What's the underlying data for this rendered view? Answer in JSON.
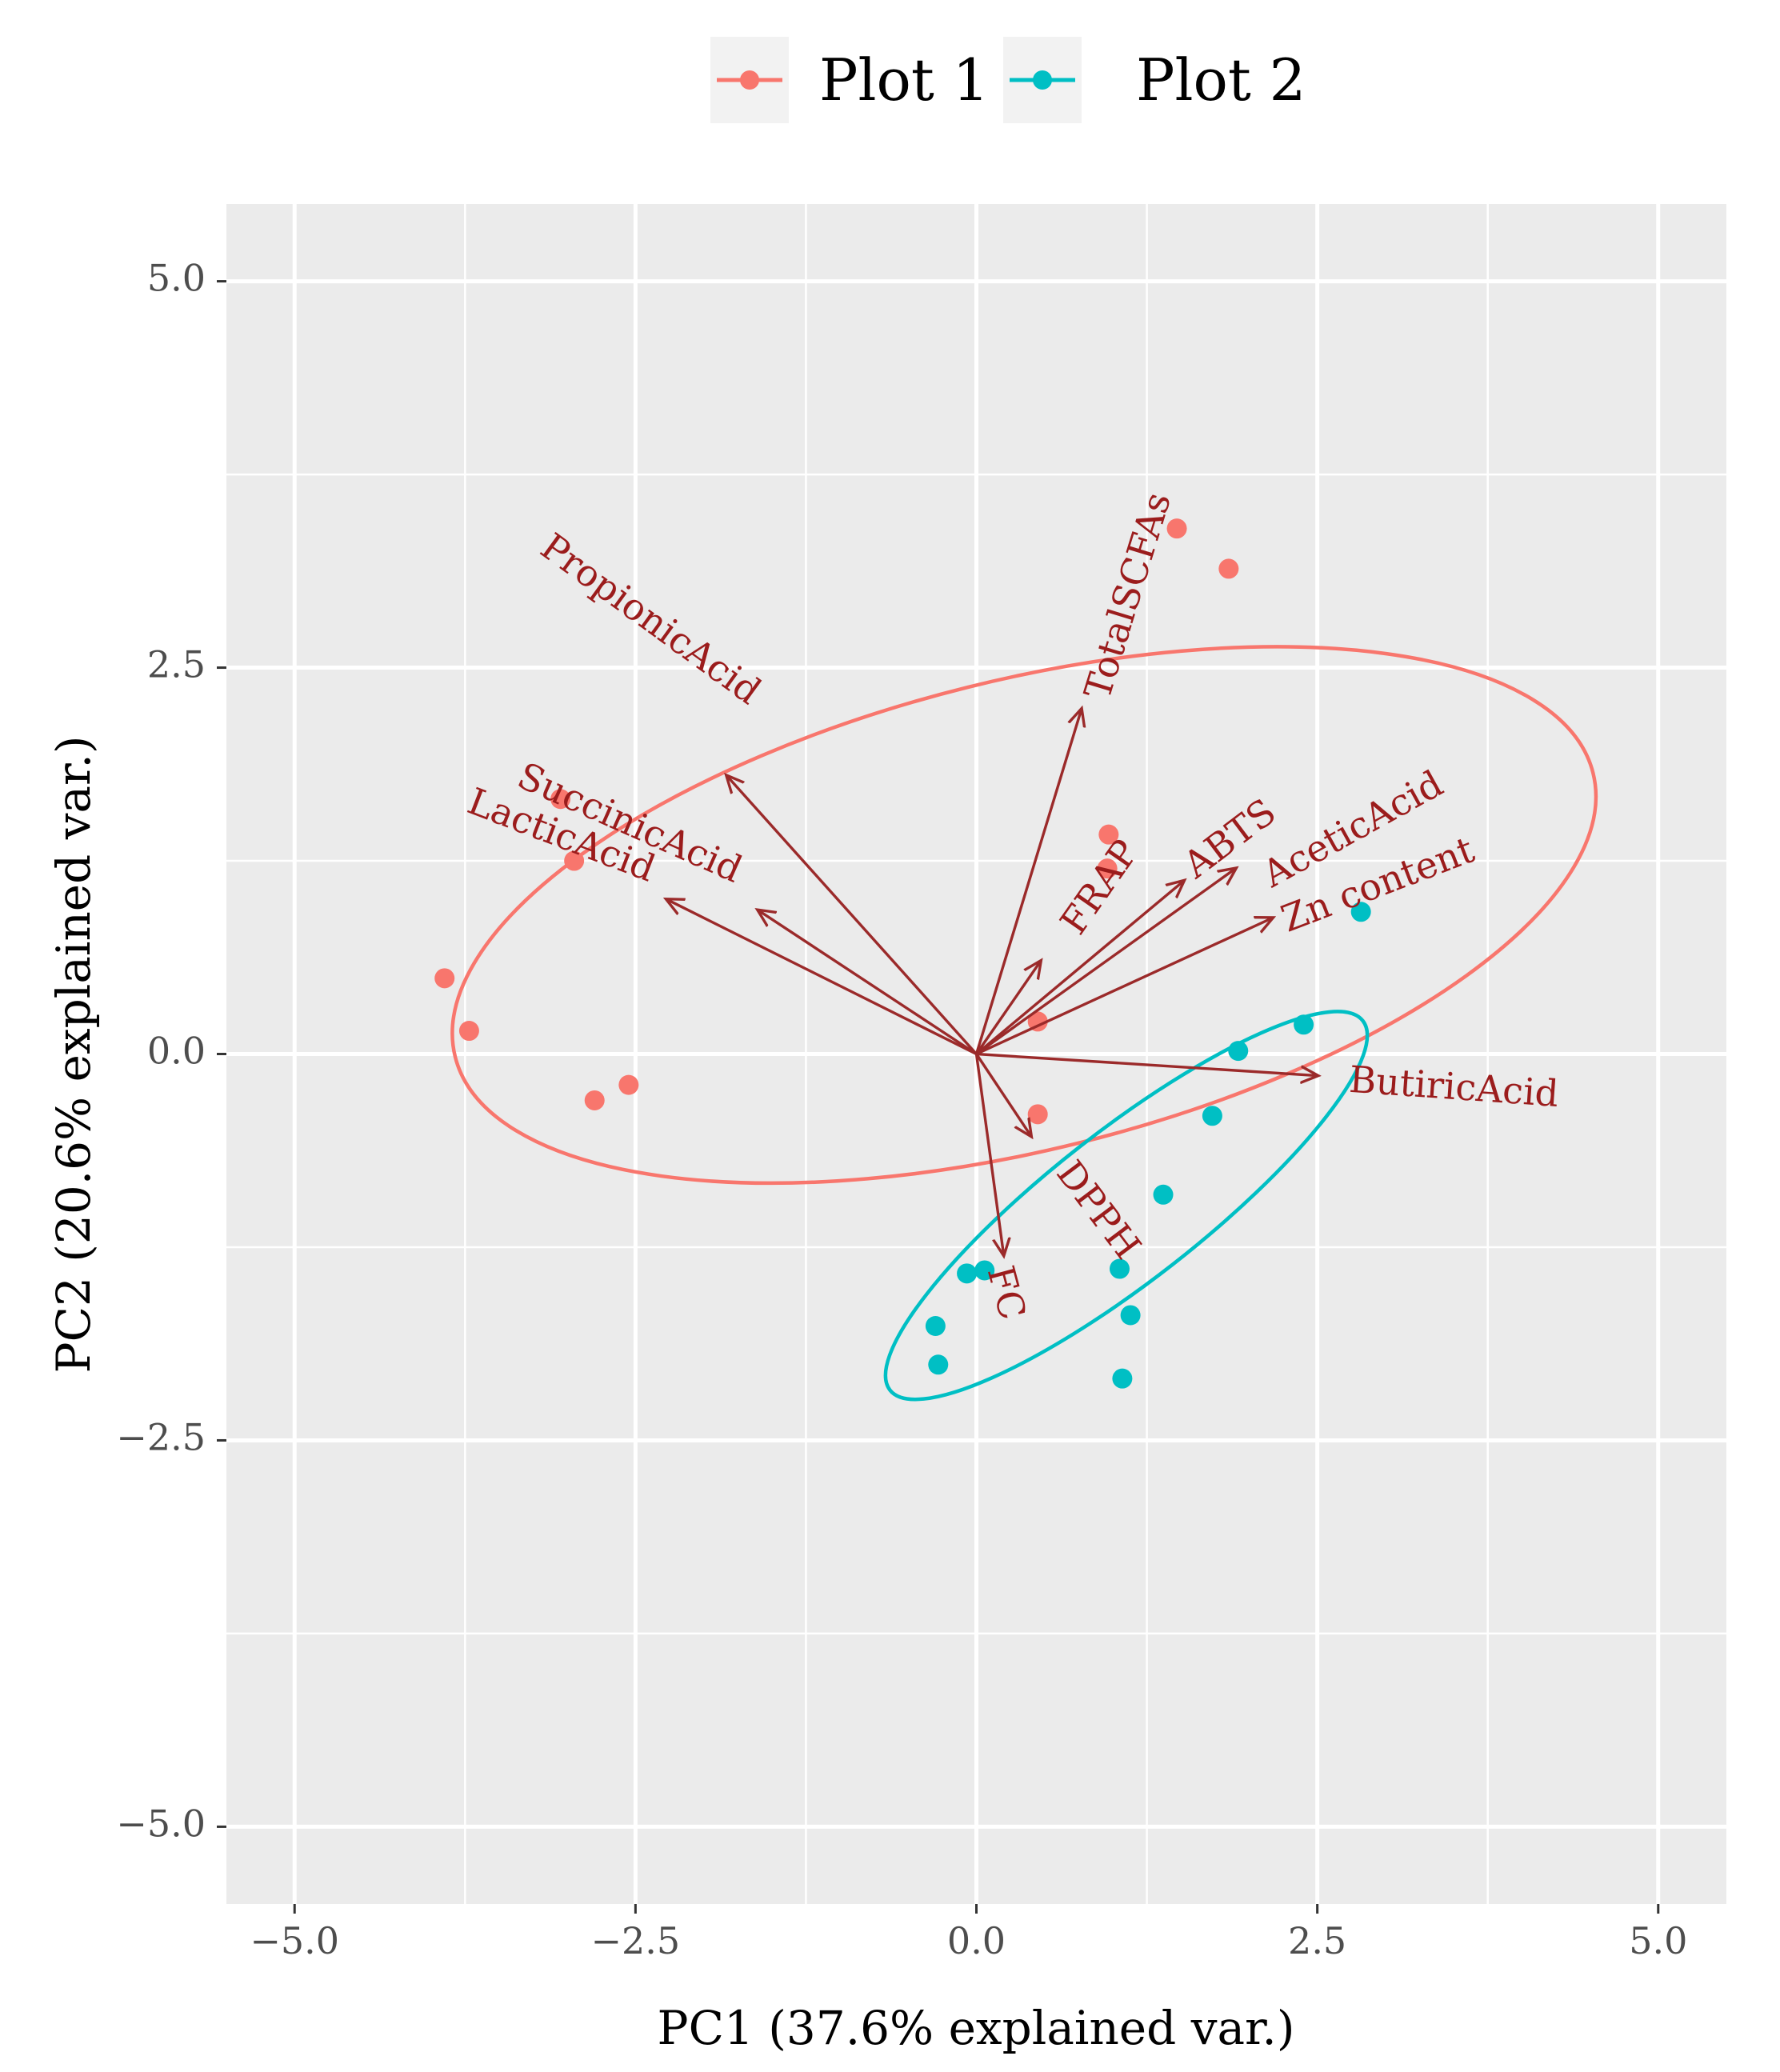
{
  "chart_data": {
    "type": "scatter",
    "subtype": "pca-biplot",
    "xlabel": "PC1 (37.6% explained var.)",
    "ylabel": "PC2 (20.6% explained var.)",
    "xlim": [
      -5.5,
      5.5
    ],
    "ylim": [
      -5.5,
      5.5
    ],
    "xticks": [
      -5.0,
      -2.5,
      0.0,
      2.5,
      5.0
    ],
    "yticks": [
      -5.0,
      -2.5,
      0.0,
      2.5,
      5.0
    ],
    "xtick_labels": [
      "−5.0",
      "−2.5",
      "0.0",
      "2.5",
      "5.0"
    ],
    "ytick_labels": [
      "−5.0",
      "−2.5",
      "0.0",
      "2.5",
      "5.0"
    ],
    "grid": true,
    "legend_position": "top",
    "series": [
      {
        "name": "Plot 1",
        "color": "#F8766D",
        "points": [
          {
            "x": -3.9,
            "y": 0.49
          },
          {
            "x": -3.72,
            "y": 0.15
          },
          {
            "x": -2.8,
            "y": -0.3
          },
          {
            "x": -2.55,
            "y": -0.2
          },
          {
            "x": -3.05,
            "y": 1.65
          },
          {
            "x": -2.95,
            "y": 1.25
          },
          {
            "x": 1.47,
            "y": 3.4
          },
          {
            "x": 1.85,
            "y": 3.14
          },
          {
            "x": 0.97,
            "y": 1.42
          },
          {
            "x": 0.96,
            "y": 1.2
          },
          {
            "x": 0.45,
            "y": 0.21
          },
          {
            "x": 0.45,
            "y": -0.39
          }
        ],
        "ellipse": {
          "cx": 0.35,
          "cy": 0.9,
          "rx": 4.3,
          "ry": 1.72,
          "rotation_deg": 14
        }
      },
      {
        "name": "Plot 2",
        "color": "#00BFC4",
        "points": [
          {
            "x": 2.82,
            "y": 0.92
          },
          {
            "x": 2.4,
            "y": 0.19
          },
          {
            "x": 1.92,
            "y": 0.02
          },
          {
            "x": 1.73,
            "y": -0.4
          },
          {
            "x": 1.37,
            "y": -0.91
          },
          {
            "x": 1.05,
            "y": -1.39
          },
          {
            "x": 1.13,
            "y": -1.69
          },
          {
            "x": 1.07,
            "y": -2.1
          },
          {
            "x": 0.06,
            "y": -1.4
          },
          {
            "x": -0.07,
            "y": -1.42
          },
          {
            "x": -0.3,
            "y": -1.76
          },
          {
            "x": -0.28,
            "y": -2.01
          }
        ],
        "ellipse": {
          "cx": 1.1,
          "cy": -0.98,
          "rx": 2.2,
          "ry": 0.55,
          "rotation_deg": 38
        }
      }
    ],
    "loadings": [
      {
        "name": "PropionicAcid",
        "x": -1.83,
        "y": 1.8,
        "label": {
          "x": -2.4,
          "y": 2.8,
          "angle": 36
        }
      },
      {
        "name": "SuccinicAcid",
        "x": -1.6,
        "y": 0.93,
        "label": {
          "x": -2.55,
          "y": 1.48,
          "angle": 24
        }
      },
      {
        "name": "LacticAcid",
        "x": -2.27,
        "y": 1.0,
        "label": {
          "x": -3.05,
          "y": 1.4,
          "angle": 21
        }
      },
      {
        "name": "TotalSCFAs",
        "x": 0.77,
        "y": 2.23,
        "label": {
          "x": 1.13,
          "y": 2.96,
          "angle": -73
        }
      },
      {
        "name": "FRAP",
        "x": 0.47,
        "y": 0.6,
        "label": {
          "x": 0.92,
          "y": 1.07,
          "angle": -55
        }
      },
      {
        "name": "ABTS",
        "x": 1.52,
        "y": 1.12,
        "label": {
          "x": 1.87,
          "y": 1.38,
          "angle": -37
        }
      },
      {
        "name": "AceticAcid",
        "x": 1.9,
        "y": 1.2,
        "label": {
          "x": 2.77,
          "y": 1.44,
          "angle": -29
        }
      },
      {
        "name": "Zn content",
        "x": 2.17,
        "y": 0.88,
        "label": {
          "x": 2.95,
          "y": 1.08,
          "angle": -21
        }
      },
      {
        "name": "ButiricAcid",
        "x": 2.5,
        "y": -0.14,
        "label": {
          "x": 3.5,
          "y": -0.23,
          "angle": 4
        }
      },
      {
        "name": "DPPH",
        "x": 0.4,
        "y": -0.53,
        "label": {
          "x": 0.88,
          "y": -1.02,
          "angle": 53
        }
      },
      {
        "name": "FC",
        "x": 0.2,
        "y": -1.3,
        "label": {
          "x": 0.2,
          "y": -1.55,
          "angle": 75
        }
      }
    ]
  }
}
